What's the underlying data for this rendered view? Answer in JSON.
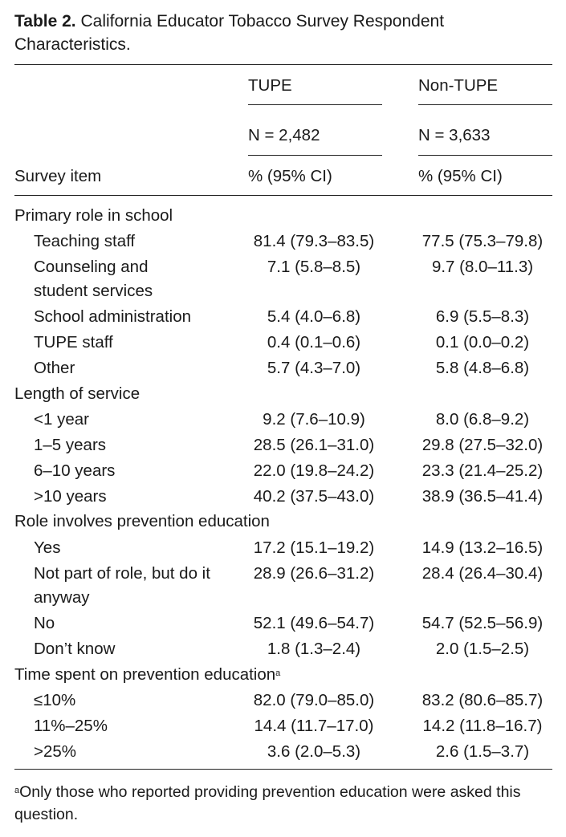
{
  "caption": {
    "label": "Table 2.",
    "title": "California Educator Tobacco Survey Respondent Characteristics."
  },
  "header": {
    "col1": "TUPE",
    "col2": "Non-TUPE",
    "n1": "N = 2,482",
    "n2": "N = 3,633",
    "stub": "Survey item",
    "stat1": "% (95% CI)",
    "stat2": "% (95% CI)"
  },
  "sections": [
    {
      "title": "Primary role in school",
      "rows": [
        {
          "item": "Teaching staff",
          "tupe": "81.4 (79.3–83.5)",
          "non_tupe": "77.5 (75.3–79.8)"
        },
        {
          "item": "Counseling and student services",
          "tupe": "7.1 (5.8–8.5)",
          "non_tupe": "9.7 (8.0–11.3)"
        },
        {
          "item": "School administration",
          "tupe": "5.4 (4.0–6.8)",
          "non_tupe": "6.9 (5.5–8.3)"
        },
        {
          "item": "TUPE staff",
          "tupe": "0.4 (0.1–0.6)",
          "non_tupe": "0.1 (0.0–0.2)"
        },
        {
          "item": "Other",
          "tupe": "5.7 (4.3–7.0)",
          "non_tupe": "5.8 (4.8–6.8)"
        }
      ]
    },
    {
      "title": "Length of service",
      "rows": [
        {
          "item": "<1 year",
          "tupe": "9.2 (7.6–10.9)",
          "non_tupe": "8.0 (6.8–9.2)"
        },
        {
          "item": "1–5 years",
          "tupe": "28.5 (26.1–31.0)",
          "non_tupe": "29.8 (27.5–32.0)"
        },
        {
          "item": "6–10 years",
          "tupe": "22.0 (19.8–24.2)",
          "non_tupe": "23.3 (21.4–25.2)"
        },
        {
          "item": ">10 years",
          "tupe": "40.2 (37.5–43.0)",
          "non_tupe": "38.9 (36.5–41.4)"
        }
      ]
    },
    {
      "title": "Role involves prevention education",
      "rows": [
        {
          "item": "Yes",
          "tupe": "17.2 (15.1–19.2)",
          "non_tupe": "14.9 (13.2–16.5)"
        },
        {
          "item": "Not part of role, but do it anyway",
          "tupe": "28.9 (26.6–31.2)",
          "non_tupe": "28.4 (26.4–30.4)"
        },
        {
          "item": "No",
          "tupe": "52.1 (49.6–54.7)",
          "non_tupe": "54.7 (52.5–56.9)"
        },
        {
          "item": "Don’t know",
          "tupe": "1.8 (1.3–2.4)",
          "non_tupe": "2.0 (1.5–2.5)"
        }
      ]
    },
    {
      "title": "Time spent on prevention education",
      "title_sup": "a",
      "rows": [
        {
          "item": "≤10%",
          "tupe": "82.0 (79.0–85.0)",
          "non_tupe": "83.2 (80.6–85.7)"
        },
        {
          "item": "11%–25%",
          "tupe": "14.4 (11.7–17.0)",
          "non_tupe": "14.2 (11.8–16.7)"
        },
        {
          "item": ">25%",
          "tupe": "3.6 (2.0–5.3)",
          "non_tupe": "2.6 (1.5–3.7)"
        }
      ]
    }
  ],
  "footnote": {
    "marker": "a",
    "text": "Only those who reported providing prevention education were asked this question."
  }
}
